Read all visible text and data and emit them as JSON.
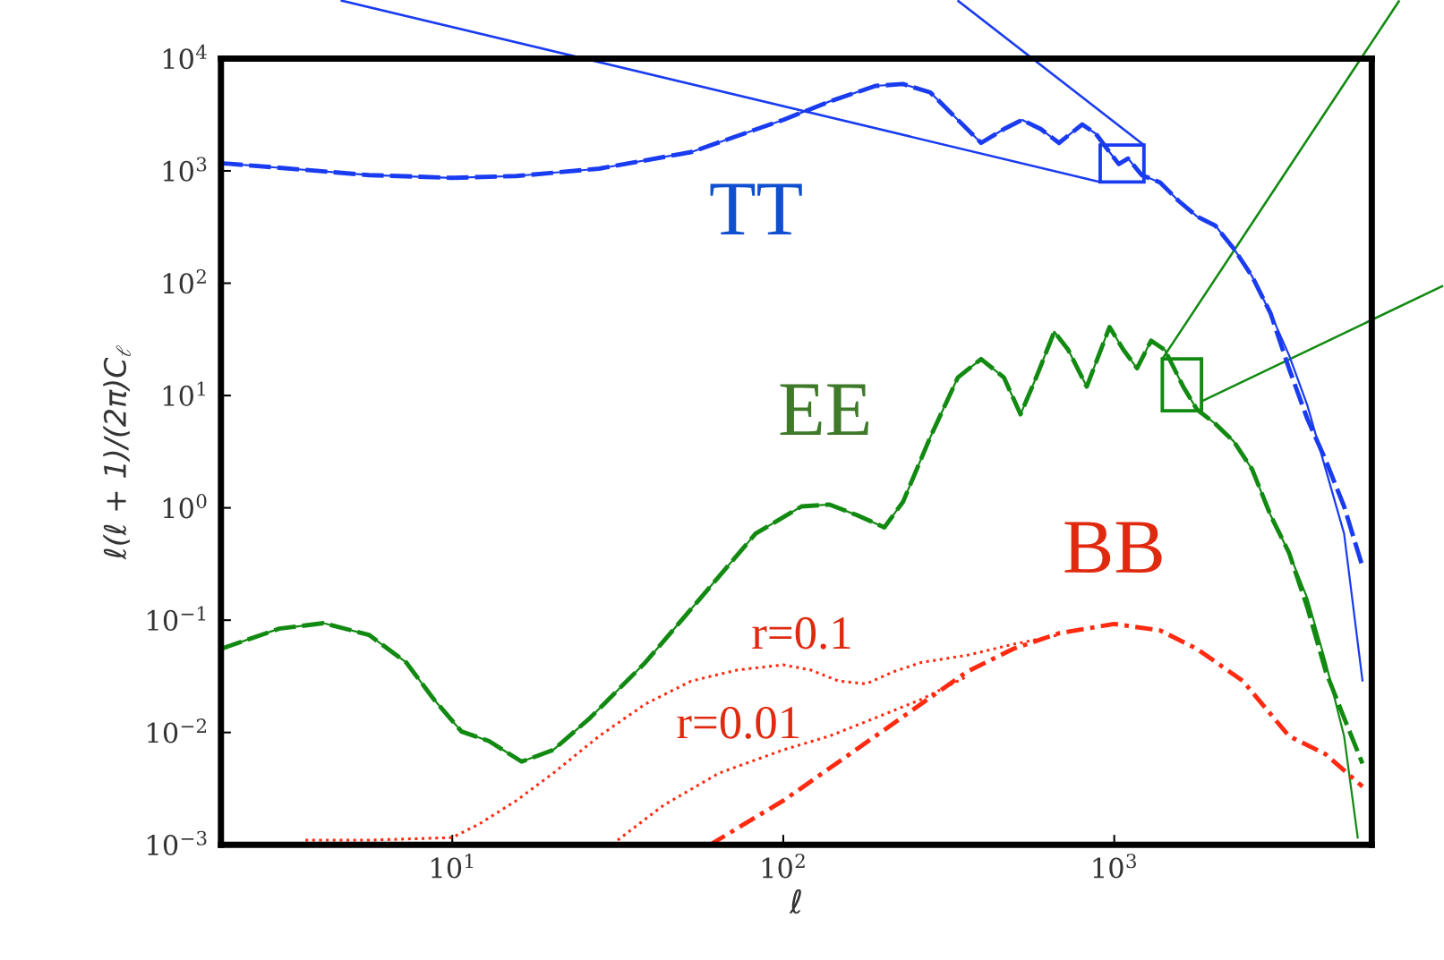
{
  "chart_data": {
    "type": "line",
    "log": "xy",
    "grid": false,
    "legend": false,
    "xlabel": "ℓ",
    "ylabel": "ℓ(ℓ + 1)/(2π)C$_{ℓ}$",
    "xlim": [
      2,
      6000
    ],
    "ylim": [
      0.001,
      10000
    ],
    "xticks": [
      {
        "value": 10,
        "label": "10$^{1}$"
      },
      {
        "value": 100,
        "label": "10$^{2}$"
      },
      {
        "value": 1000,
        "label": "10$^{3}$"
      }
    ],
    "yticks": [
      {
        "value": 0.001,
        "label": "10$^{−3}$"
      },
      {
        "value": 0.01,
        "label": "10$^{−2}$"
      },
      {
        "value": 0.1,
        "label": "10$^{−1}$"
      },
      {
        "value": 1,
        "label": "10$^{0}$"
      },
      {
        "value": 10,
        "label": "10$^{1}$"
      },
      {
        "value": 100,
        "label": "10$^{2}$"
      },
      {
        "value": 1000,
        "label": "10$^{3}$"
      },
      {
        "value": 10000,
        "label": "10$^{4}$"
      }
    ],
    "series": [
      {
        "color": "#1a3cf0",
        "line_style": "solid",
        "x": [
          2,
          3,
          5.6,
          10,
          15.6,
          27.8,
          52.7,
          100,
          138,
          190,
          230,
          278,
          337,
          396,
          464,
          527,
          600,
          681,
          800,
          880,
          968,
          1032,
          1101,
          1211,
          1376,
          1564,
          1778,
          2021,
          2297,
          2610,
          2966,
          3371,
          3831,
          4354,
          4948,
          5623
        ],
        "values": [
          1172,
          1066,
          917,
          867,
          900,
          1047,
          1470,
          2844,
          4150,
          5710,
          5930,
          5000,
          2844,
          1774,
          2355,
          2844,
          2355,
          1774,
          2590,
          2140,
          1470,
          1150,
          1288,
          917,
          789,
          541,
          393,
          325,
          203,
          115,
          54,
          23,
          8.2,
          2.2,
          0.59,
          0.029
        ]
      },
      {
        "color": "#1a3cf0",
        "line_style": "dashed",
        "x": [
          2,
          3,
          5.6,
          10,
          15.6,
          27.8,
          52.7,
          100,
          138,
          190,
          230,
          278,
          337,
          396,
          464,
          527,
          600,
          681,
          800,
          880,
          968,
          1032,
          1101,
          1211,
          1376,
          1564,
          1778,
          2021,
          2297,
          2610,
          2966,
          3371,
          3831,
          4354,
          4948,
          5623
        ],
        "values": [
          1172,
          1066,
          917,
          867,
          900,
          1047,
          1470,
          2844,
          4150,
          5710,
          5930,
          5000,
          2844,
          1774,
          2355,
          2844,
          2355,
          1774,
          2590,
          2140,
          1470,
          1150,
          1288,
          917,
          789,
          541,
          393,
          325,
          203,
          115,
          54,
          17.5,
          6.2,
          2.65,
          1.03,
          0.3
        ]
      },
      {
        "color": "#128a12",
        "line_style": "solid",
        "x": [
          2,
          3,
          4.08,
          5.6,
          7.26,
          8.8,
          10.66,
          12.9,
          16.2,
          20.2,
          26.1,
          38.3,
          56.2,
          82.5,
          113.6,
          138,
          167,
          202,
          230,
          278,
          337,
          396,
          464,
          521,
          581,
          659,
          726,
          826,
          968,
          1066,
          1172,
          1292,
          1422,
          1616,
          1778,
          2021,
          2297,
          2610,
          2966,
          3371,
          3831,
          4354,
          4948,
          5441
        ],
        "values": [
          0.0555,
          0.084,
          0.094,
          0.074,
          0.042,
          0.0197,
          0.0102,
          0.0084,
          0.0055,
          0.007,
          0.0135,
          0.042,
          0.157,
          0.59,
          1.03,
          1.07,
          0.86,
          0.67,
          1.13,
          4.25,
          14.5,
          21.1,
          14.5,
          6.8,
          14.5,
          37,
          25.5,
          12,
          40.8,
          25.5,
          17.5,
          30.8,
          25.5,
          12,
          7.5,
          5.6,
          3.9,
          2.2,
          0.86,
          0.4,
          0.157,
          0.042,
          0.0093,
          0.00116
        ]
      },
      {
        "color": "#128a12",
        "line_style": "dashed",
        "x": [
          2,
          3,
          4.08,
          5.6,
          7.26,
          8.8,
          10.66,
          12.9,
          16.2,
          20.2,
          26.1,
          38.3,
          56.2,
          82.5,
          113.6,
          138,
          167,
          202,
          230,
          278,
          337,
          396,
          464,
          521,
          581,
          659,
          726,
          826,
          968,
          1066,
          1172,
          1292,
          1422,
          1616,
          1778,
          2021,
          2297,
          2610,
          2966,
          3371,
          3831,
          4354,
          4948,
          5623
        ],
        "values": [
          0.0555,
          0.084,
          0.094,
          0.074,
          0.042,
          0.0197,
          0.0102,
          0.0084,
          0.0055,
          0.007,
          0.0135,
          0.042,
          0.157,
          0.59,
          1.03,
          1.07,
          0.86,
          0.67,
          1.13,
          4.25,
          14.5,
          21.1,
          14.5,
          6.8,
          14.5,
          37,
          25.5,
          12,
          40.8,
          25.5,
          17.5,
          30.8,
          25.5,
          12,
          7.5,
          5.6,
          3.9,
          2.2,
          0.86,
          0.4,
          0.13,
          0.035,
          0.0135,
          0.0053
        ]
      },
      {
        "color": "#ff2a10",
        "line_style": "dotted",
        "x": [
          3.6,
          5.6,
          10,
          12.1,
          15.6,
          20.2,
          27.8,
          38.3,
          52.7,
          72.6,
          100,
          121,
          147,
          178,
          215,
          261,
          359,
          495,
          681
        ],
        "values": [
          0.0011,
          0.0011,
          0.00116,
          0.00154,
          0.00247,
          0.00435,
          0.0093,
          0.0179,
          0.0287,
          0.036,
          0.04,
          0.036,
          0.0287,
          0.0271,
          0.0347,
          0.042,
          0.0487,
          0.061,
          0.074
        ]
      },
      {
        "color": "#ff2a10",
        "line_style": "dotted",
        "x": [
          31.6,
          43.5,
          64,
          100,
          138,
          190,
          261,
          359
        ],
        "values": [
          0.0011,
          0.00225,
          0.00435,
          0.007,
          0.0093,
          0.0135,
          0.0197,
          0.0315
        ]
      },
      {
        "color": "#ff2a10",
        "line_style": "dashdot",
        "x": [
          60,
          100,
          190,
          359,
          495,
          681,
          1000,
          1376,
          1778,
          2448,
          3371,
          4354,
          5623
        ],
        "values": [
          0.001,
          0.00247,
          0.0093,
          0.0347,
          0.0555,
          0.0765,
          0.0925,
          0.081,
          0.0555,
          0.0287,
          0.0093,
          0.0064,
          0.0033
        ]
      }
    ],
    "annotations": [
      "TT",
      "EE",
      "BB",
      "r=0.1",
      "r=0.01"
    ]
  }
}
